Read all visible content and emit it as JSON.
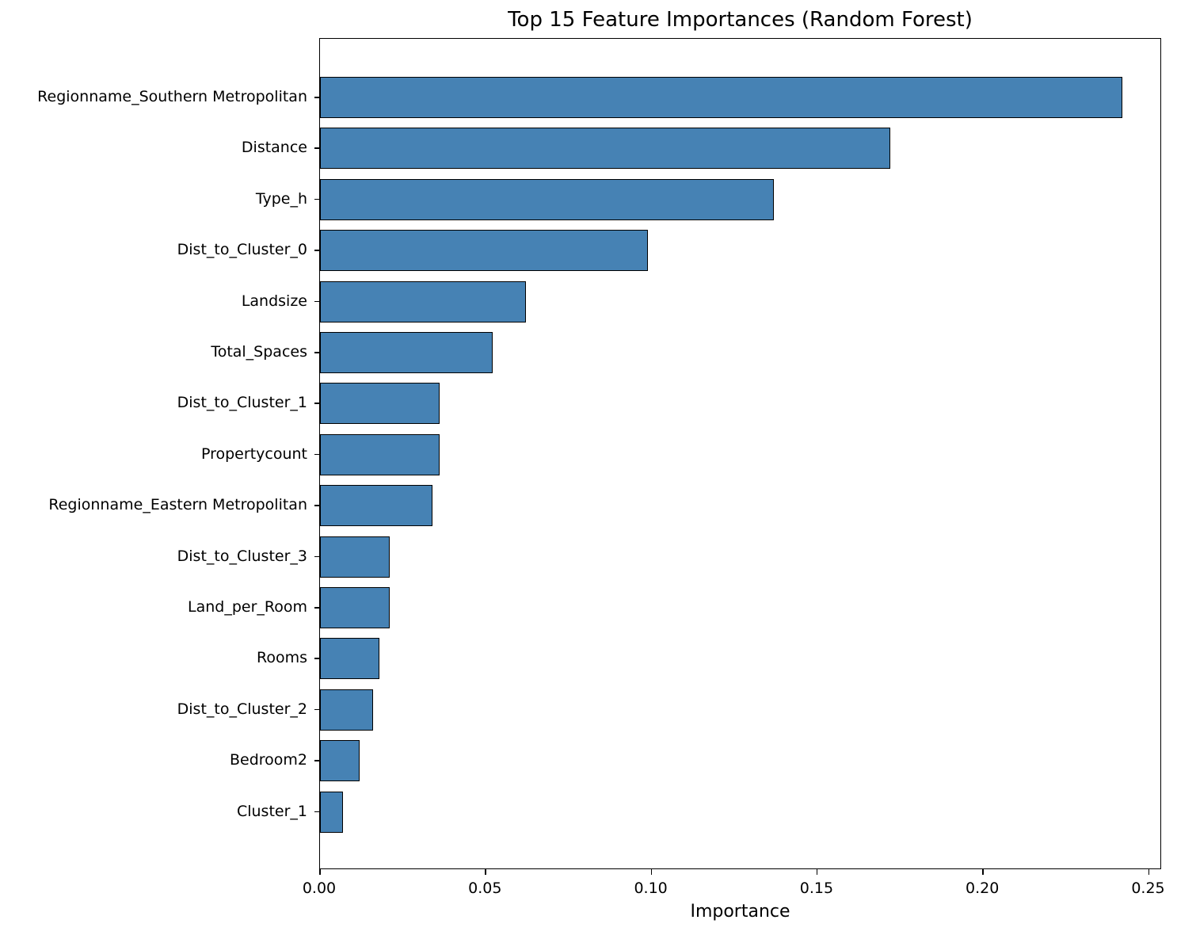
{
  "chart_data": {
    "type": "bar",
    "orientation": "horizontal",
    "title": "Top 15 Feature Importances (Random Forest)",
    "xlabel": "Importance",
    "ylabel": "",
    "xlim": [
      0,
      0.254
    ],
    "xticks": [
      "0.00",
      "0.05",
      "0.10",
      "0.15",
      "0.20",
      "0.25"
    ],
    "grid": false,
    "legend": null,
    "bar_color": "#4682b4",
    "edge_color": "#000000",
    "categories": [
      "Regionname_Southern Metropolitan",
      "Distance",
      "Type_h",
      "Dist_to_Cluster_0",
      "Landsize",
      "Total_Spaces",
      "Dist_to_Cluster_1",
      "Propertycount",
      "Regionname_Eastern Metropolitan",
      "Dist_to_Cluster_3",
      "Land_per_Room",
      "Rooms",
      "Dist_to_Cluster_2",
      "Bedroom2",
      "Cluster_1"
    ],
    "values": [
      0.242,
      0.172,
      0.137,
      0.099,
      0.062,
      0.052,
      0.036,
      0.036,
      0.034,
      0.021,
      0.021,
      0.018,
      0.016,
      0.012,
      0.007
    ]
  }
}
